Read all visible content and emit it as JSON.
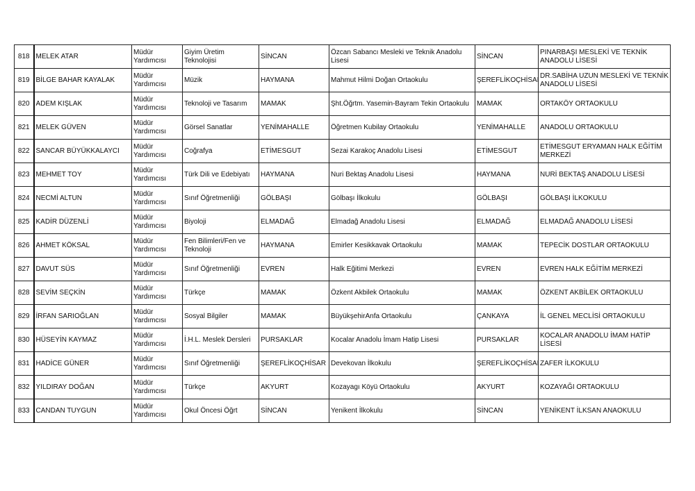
{
  "rows": [
    [
      "818",
      "MELEK ATAR",
      "Müdür Yardımcısı",
      "Giyim Üretim Teknolojisi",
      "SİNCAN",
      "Özcan Sabancı Mesleki ve Teknik Anadolu Lisesi",
      "SİNCAN",
      "PINARBAŞI MESLEKİ VE TEKNİK ANADOLU LİSESİ"
    ],
    [
      "819",
      "BİLGE BAHAR KAYALAK",
      "Müdür Yardımcısı",
      "Müzik",
      "HAYMANA",
      "Mahmut Hilmi Doğan Ortaokulu",
      "ŞEREFLİKOÇHİSAR",
      "DR.SABİHA  UZUN MESLEKİ VE TEKNİK ANADOLU LİSESİ"
    ],
    [
      "820",
      "ADEM KIŞLAK",
      "Müdür Yardımcısı",
      "Teknoloji ve Tasarım",
      "MAMAK",
      "Şht.Öğrtm. Yasemin-Bayram Tekin Ortaokulu",
      "MAMAK",
      "ORTAKÖY ORTAOKULU"
    ],
    [
      "821",
      "MELEK GÜVEN",
      "Müdür Yardımcısı",
      "Görsel Sanatlar",
      "YENİMAHALLE",
      "Öğretmen Kubilay Ortaokulu",
      "YENİMAHALLE",
      "ANADOLU ORTAOKULU"
    ],
    [
      "822",
      "SANCAR BÜYÜKKALAYCI",
      "Müdür Yardımcısı",
      "Coğrafya",
      "ETİMESGUT",
      "Sezai Karakoç Anadolu Lisesi",
      "ETİMESGUT",
      "ETİMESGUT ERYAMAN HALK EĞİTİM MERKEZİ"
    ],
    [
      "823",
      "MEHMET TOY",
      "Müdür Yardımcısı",
      "Türk Dili ve Edebiyatı",
      "HAYMANA",
      "Nuri Bektaş Anadolu Lisesi",
      "HAYMANA",
      "NURİ BEKTAŞ ANADOLU LİSESİ"
    ],
    [
      "824",
      "NECMİ ALTUN",
      "Müdür Yardımcısı",
      "Sınıf Öğretmenliği",
      "GÖLBAŞI",
      "Gölbaşı İlkokulu",
      "GÖLBAŞI",
      "GÖLBAŞI İLKOKULU"
    ],
    [
      "825",
      "KADİR DÜZENLİ",
      "Müdür Yardımcısı",
      "Biyoloji",
      "ELMADAĞ",
      "Elmadağ Anadolu Lisesi",
      "ELMADAĞ",
      "ELMADAĞ ANADOLU LİSESİ"
    ],
    [
      "826",
      "AHMET KÖKSAL",
      "Müdür Yardımcısı",
      "Fen Bilimleri/Fen ve Teknoloji",
      "HAYMANA",
      "Emirler Kesikkavak Ortaokulu",
      "MAMAK",
      "TEPECİK DOSTLAR ORTAOKULU"
    ],
    [
      "827",
      "DAVUT SÜS",
      "Müdür Yardımcısı",
      "Sınıf Öğretmenliği",
      "EVREN",
      "Halk Eğitimi Merkezi",
      "EVREN",
      "EVREN HALK EĞİTİM MERKEZİ"
    ],
    [
      "828",
      "SEVİM SEÇKİN",
      "Müdür Yardımcısı",
      "Türkçe",
      "MAMAK",
      "Özkent Akbilek Ortaokulu",
      "MAMAK",
      "ÖZKENT AKBİLEK ORTAOKULU"
    ],
    [
      "829",
      "İRFAN SARIOĞLAN",
      "Müdür Yardımcısı",
      "Sosyal Bilgiler",
      "MAMAK",
      "BüyükşehirAnfa Ortaokulu",
      "ÇANKAYA",
      "İL GENEL MECLİSİ ORTAOKULU"
    ],
    [
      "830",
      "HÜSEYİN KAYMAZ",
      "Müdür Yardımcısı",
      "İ.H.L. Meslek Dersleri",
      "PURSAKLAR",
      "Kocalar Anadolu İmam Hatip Lisesi",
      "PURSAKLAR",
      "KOCALAR ANADOLU İMAM HATİP LİSESİ"
    ],
    [
      "831",
      "HADİCE GÜNER",
      "Müdür Yardımcısı",
      "Sınıf Öğretmenliği",
      "ŞEREFLİKOÇHİSAR",
      "Devekovan İlkokulu",
      "ŞEREFLİKOÇHİSAR",
      "ZAFER İLKOKULU"
    ],
    [
      "832",
      "YILDIRAY DOĞAN",
      "Müdür Yardımcısı",
      "Türkçe",
      "AKYURT",
      "Kozayagı Köyü Ortaokulu",
      "AKYURT",
      "KOZAYAĞI ORTAOKULU"
    ],
    [
      "833",
      "CANDAN TUYGUN",
      "Müdür Yardımcısı",
      "Okul Öncesi Öğrt",
      "SİNCAN",
      "Yenikent İlkokulu",
      "SİNCAN",
      "YENİKENT İLKSAN ANAOKULU"
    ]
  ]
}
